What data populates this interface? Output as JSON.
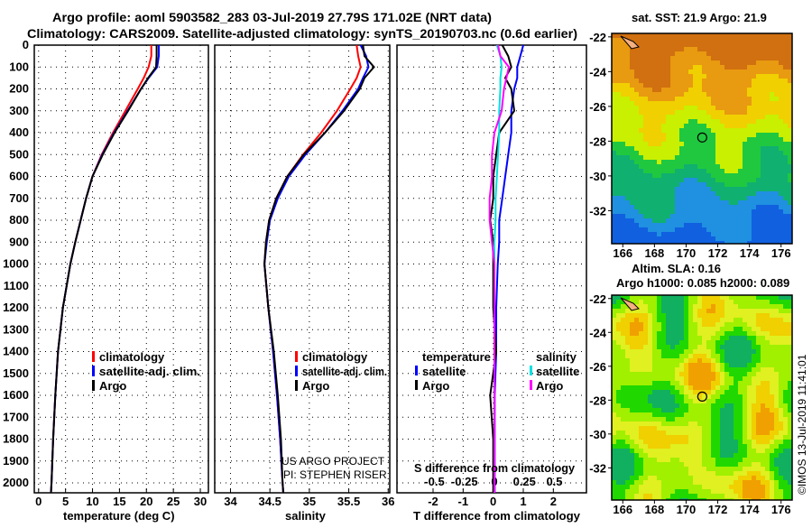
{
  "title": [
    "Argo profile: aoml 5903582_283 03-Jul-2019 27.79S 171.02E (NRT data)",
    "Climatology: CARS2009. Satellite-adjusted climatology: synTS_20190703.nc (0.6d earlier)"
  ],
  "colors": {
    "climatology": "#ff0000",
    "satellite": "#0000ff",
    "argo": "#000000",
    "sal_satellite": "#00e0e0",
    "sal_argo": "#ff00ff"
  },
  "chart_data": [
    {
      "type": "line",
      "xlabel": "temperature (deg C)",
      "ylabel": "",
      "xlim": [
        -0.8,
        31.5
      ],
      "ylim": [
        2100,
        0
      ],
      "xticks": [
        "0",
        "5",
        "10",
        "15",
        "20",
        "25",
        "30"
      ],
      "xtick_values": [
        0,
        5,
        10,
        15,
        20,
        25,
        30
      ],
      "yticks": [
        "0",
        "100",
        "200",
        "300",
        "400",
        "500",
        "600",
        "700",
        "800",
        "900",
        "1000",
        "1100",
        "1200",
        "1300",
        "1400",
        "1500",
        "1600",
        "1700",
        "1800",
        "1900",
        "2000"
      ],
      "depth": [
        0,
        50,
        100,
        150,
        200,
        300,
        400,
        500,
        600,
        700,
        800,
        900,
        1000,
        1200,
        1400,
        1600,
        1800,
        2000,
        2050
      ],
      "series": [
        {
          "name": "climatology",
          "values": [
            20.9,
            20.9,
            20.4,
            19.5,
            18.4,
            16.1,
            13.8,
            11.7,
            10.0,
            8.8,
            7.8,
            6.8,
            5.9,
            4.5,
            3.6,
            3.1,
            2.7,
            2.4,
            2.3
          ]
        },
        {
          "name": "satellite-adj. clim.",
          "values": [
            22.3,
            22.3,
            22.0,
            20.4,
            19.0,
            16.5,
            14.0,
            11.8,
            10.0,
            8.8,
            7.8,
            6.8,
            5.9,
            4.5,
            3.6,
            3.1,
            2.7,
            2.4,
            2.3
          ]
        },
        {
          "name": "Argo",
          "values": [
            21.9,
            21.9,
            21.8,
            20.3,
            19.0,
            16.6,
            14.1,
            11.9,
            10.0,
            8.8,
            7.8,
            6.8,
            5.9,
            4.5,
            3.6,
            3.1,
            2.7,
            2.4,
            2.3
          ]
        }
      ],
      "legend": [
        "climatology",
        "satellite-adj. clim.",
        "Argo"
      ]
    },
    {
      "type": "line",
      "xlabel": "salinity",
      "xlim": [
        33.8,
        36.02
      ],
      "ylim": [
        2100,
        0
      ],
      "xticks": [
        "34",
        "34.5",
        "35",
        "35.5",
        "36"
      ],
      "xtick_values": [
        34,
        34.5,
        35,
        35.5,
        36
      ],
      "depth": [
        0,
        50,
        100,
        150,
        200,
        300,
        400,
        500,
        600,
        700,
        800,
        900,
        1000,
        1200,
        1400,
        1600,
        1800,
        2000,
        2050
      ],
      "series": [
        {
          "name": "climatology",
          "values": [
            35.6,
            35.62,
            35.65,
            35.6,
            35.52,
            35.35,
            35.15,
            34.92,
            34.72,
            34.58,
            34.49,
            34.45,
            34.43,
            34.48,
            34.54,
            34.59,
            34.63,
            34.66,
            34.67
          ]
        },
        {
          "name": "satellite-adj. clim.",
          "values": [
            35.65,
            35.72,
            35.75,
            35.68,
            35.62,
            35.42,
            35.2,
            34.95,
            34.74,
            34.6,
            34.5,
            34.46,
            34.43,
            34.48,
            34.54,
            34.59,
            34.63,
            34.66,
            34.67
          ]
        },
        {
          "name": "Argo",
          "values": [
            35.68,
            35.7,
            35.82,
            35.7,
            35.64,
            35.44,
            35.2,
            34.93,
            34.72,
            34.58,
            34.49,
            34.45,
            34.43,
            34.48,
            34.55,
            34.6,
            34.64,
            34.66,
            34.67
          ]
        }
      ],
      "legend": [
        "climatology",
        "satellite-adj. clim.",
        "Argo"
      ],
      "credit": [
        "US ARGO PROJECT",
        "PI: STEPHEN RISER"
      ]
    },
    {
      "type": "line",
      "xlabel": "T difference from climatology",
      "xlim": [
        -3.2,
        3.1
      ],
      "ylim": [
        2100,
        0
      ],
      "xticks": [
        "-2",
        "-1",
        "0",
        "1",
        "2"
      ],
      "xtick_values": [
        -2,
        -1,
        0,
        1,
        2
      ],
      "s_xlabel": "S difference from climatology",
      "s_xticks": [
        "-0.5",
        "-0.25",
        "0",
        "0.25",
        "0.5"
      ],
      "s_xtick_values": [
        -0.5,
        -0.25,
        0,
        0.25,
        0.5
      ],
      "depth": [
        0,
        50,
        100,
        150,
        200,
        300,
        400,
        500,
        600,
        700,
        800,
        900,
        1000,
        1200,
        1400,
        1600,
        1800,
        2000,
        2050
      ],
      "series": [
        {
          "name": "temperature satellite",
          "values": [
            1.0,
            0.9,
            0.8,
            0.8,
            0.7,
            0.6,
            0.6,
            0.5,
            0.4,
            0.3,
            0.2,
            0.2,
            0.15,
            0.1,
            0.1,
            0.05,
            0.05,
            0.05,
            0.05
          ]
        },
        {
          "name": "temperature Argo",
          "values": [
            0.3,
            0.5,
            0.6,
            0.4,
            0.6,
            0.7,
            0.2,
            0.1,
            0.0,
            0.0,
            -0.1,
            0.0,
            0.0,
            0.0,
            0.1,
            -0.1,
            0.0,
            0.0,
            0.0
          ]
        },
        {
          "name": "salinity satellite",
          "values": [
            0.02,
            0.05,
            0.06,
            0.05,
            0.05,
            0.04,
            0.04,
            0.03,
            0.02,
            0.01,
            0.01,
            0.0,
            0.0,
            0.0,
            0.0,
            0.0,
            0.0,
            0.0,
            0.0
          ]
        },
        {
          "name": "salinity Argo",
          "values": [
            0.03,
            0.05,
            0.12,
            0.1,
            0.08,
            0.06,
            0.0,
            -0.02,
            -0.02,
            -0.04,
            -0.04,
            -0.02,
            0.0,
            0.0,
            0.0,
            0.0,
            0.0,
            0.0,
            0.0
          ]
        }
      ],
      "legend": {
        "temperature_title": "temperature",
        "salinity_title": "salinity",
        "items": [
          "satellite",
          "Argo",
          "satellite",
          "Argo"
        ]
      }
    },
    {
      "type": "heatmap",
      "title": "sat. SST: 21.9 Argo: 21.9",
      "xticks": [
        "166",
        "168",
        "170",
        "172",
        "174",
        "176"
      ],
      "yticks": [
        "-22",
        "-24",
        "-26",
        "-28",
        "-30",
        "-32"
      ],
      "marker": [
        171.02,
        -27.79
      ]
    },
    {
      "type": "heatmap",
      "title": [
        "Altim. SLA: 0.16",
        "Argo h1000: 0.085 h2000: 0.089"
      ],
      "xticks": [
        "166",
        "168",
        "170",
        "172",
        "174",
        "176"
      ],
      "yticks": [
        "-22",
        "-24",
        "-26",
        "-28",
        "-30",
        "-32"
      ],
      "marker": [
        171.02,
        -27.79
      ]
    }
  ],
  "watermark": "©IMOS 13-Jul-2019 11:41:01"
}
